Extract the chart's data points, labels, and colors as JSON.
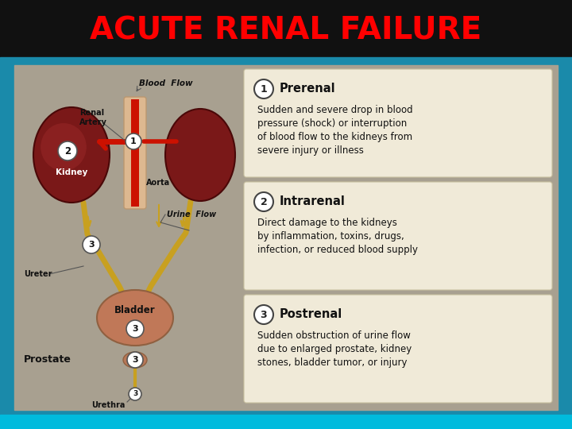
{
  "title": "ACUTE RENAL FAILURE",
  "title_color": "#ff0000",
  "title_fontsize": 28,
  "sections": [
    {
      "number": "1",
      "heading": "Prerenal",
      "text": "Sudden and severe drop in blood\npressure (shock) or interruption\nof blood flow to the kidneys from\nsevere injury or illness"
    },
    {
      "number": "2",
      "heading": "Intrarenal",
      "text": "Direct damage to the kidneys\nby inflammation, toxins, drugs,\ninfection, or reduced blood supply"
    },
    {
      "number": "3",
      "heading": "Postrenal",
      "text": "Sudden obstruction of urine flow\ndue to enlarged prostate, kidney\nstones, bladder tumor, or injury"
    }
  ],
  "box_bg": "#f0ead8",
  "box_border": "#c8c0a0",
  "slide_bg": "#a8a090",
  "title_bar_color": "#111111",
  "teal_color": "#1a8aaa",
  "cyan_strip": "#00bbdd",
  "ureter_color": "#b89020",
  "kidney_color": "#7a1818",
  "kidney_edge": "#4a0808",
  "bladder_color": "#c07858",
  "aorta_color": "#e0c0a0",
  "artery_color": "#cc1100",
  "label_color": "#111111",
  "label_fontsize": 7.0,
  "heading_fontsize": 10.5,
  "body_fontsize": 8.5
}
